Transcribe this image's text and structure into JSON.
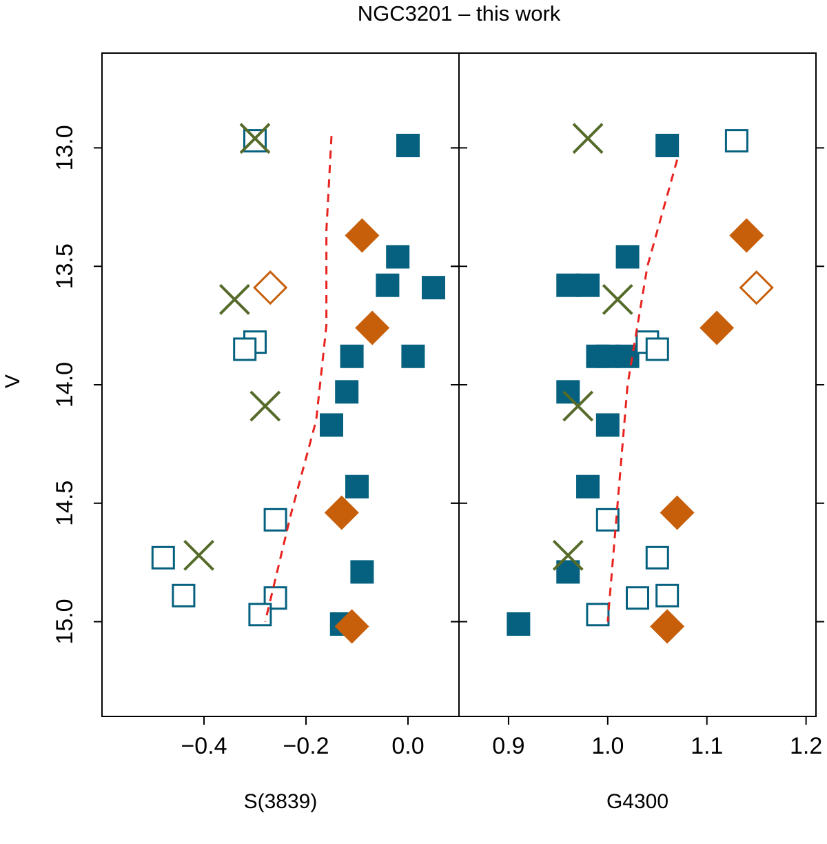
{
  "title": "NGC3201 – this work",
  "ylabel": "V",
  "colors": {
    "blue": "#05617f",
    "orange": "#c75f0a",
    "green": "#566b2a",
    "trend": "#e8231f"
  },
  "chart_data": [
    {
      "type": "scatter",
      "panel": "left",
      "xlabel": "S(3839)",
      "ylabel": "V",
      "xlim": [
        -0.6,
        0.1
      ],
      "ylim": [
        15.4,
        12.6
      ],
      "x_ticks": [
        -0.4,
        -0.2,
        0.0
      ],
      "x_tick_labels": [
        "−0.4",
        "−0.2",
        "0.0"
      ],
      "y_ticks": [
        13.0,
        13.5,
        14.0,
        14.5,
        15.0
      ],
      "y_tick_labels": [
        "13.0",
        "13.5",
        "14.0",
        "14.5",
        "15.0"
      ],
      "series": [
        {
          "marker": "filled-square",
          "color": "blue",
          "points": [
            [
              0.0,
              12.99
            ],
            [
              -0.02,
              13.46
            ],
            [
              -0.04,
              13.58
            ],
            [
              0.05,
              13.59
            ],
            [
              -0.11,
              13.88
            ],
            [
              0.01,
              13.88
            ],
            [
              -0.12,
              14.03
            ],
            [
              -0.15,
              14.17
            ],
            [
              -0.1,
              14.43
            ],
            [
              -0.09,
              14.79
            ],
            [
              -0.13,
              15.01
            ]
          ]
        },
        {
          "marker": "open-square",
          "color": "blue",
          "points": [
            [
              -0.3,
              12.97
            ],
            [
              -0.3,
              13.82
            ],
            [
              -0.32,
              13.85
            ],
            [
              -0.26,
              14.57
            ],
            [
              -0.48,
              14.73
            ],
            [
              -0.44,
              14.89
            ],
            [
              -0.26,
              14.9
            ],
            [
              -0.29,
              14.97
            ]
          ]
        },
        {
          "marker": "filled-diamond",
          "color": "orange",
          "points": [
            [
              -0.09,
              13.37
            ],
            [
              -0.07,
              13.76
            ],
            [
              -0.13,
              14.54
            ],
            [
              -0.11,
              15.02
            ]
          ]
        },
        {
          "marker": "open-diamond",
          "color": "orange",
          "points": [
            [
              -0.27,
              13.59
            ]
          ]
        },
        {
          "marker": "cross",
          "color": "green",
          "points": [
            [
              -0.3,
              12.96
            ],
            [
              -0.34,
              13.64
            ],
            [
              -0.28,
              14.09
            ],
            [
              -0.41,
              14.72
            ]
          ]
        },
        {
          "marker": "dashed-line",
          "color": "trend",
          "points": [
            [
              -0.15,
              12.95
            ],
            [
              -0.16,
              13.35
            ],
            [
              -0.16,
              13.75
            ],
            [
              -0.18,
              14.15
            ],
            [
              -0.23,
              14.55
            ],
            [
              -0.28,
              15.0
            ]
          ]
        }
      ]
    },
    {
      "type": "scatter",
      "panel": "right",
      "xlabel": "G4300",
      "xlim": [
        0.85,
        1.21
      ],
      "ylim": [
        15.4,
        12.6
      ],
      "x_ticks": [
        0.9,
        1.0,
        1.1,
        1.2
      ],
      "x_tick_labels": [
        "0.9",
        "1.0",
        "1.1",
        "1.2"
      ],
      "series": [
        {
          "marker": "filled-square",
          "color": "blue",
          "points": [
            [
              1.06,
              12.99
            ],
            [
              1.02,
              13.46
            ],
            [
              0.96,
              13.58
            ],
            [
              0.98,
              13.58
            ],
            [
              0.99,
              13.88
            ],
            [
              1.0,
              13.88
            ],
            [
              1.02,
              13.88
            ],
            [
              0.96,
              14.03
            ],
            [
              1.0,
              14.17
            ],
            [
              0.98,
              14.43
            ],
            [
              0.96,
              14.79
            ],
            [
              0.91,
              15.01
            ]
          ]
        },
        {
          "marker": "open-square",
          "color": "blue",
          "points": [
            [
              1.13,
              12.97
            ],
            [
              1.04,
              13.82
            ],
            [
              1.05,
              13.85
            ],
            [
              1.0,
              14.57
            ],
            [
              1.05,
              14.73
            ],
            [
              1.06,
              14.89
            ],
            [
              1.03,
              14.9
            ],
            [
              0.99,
              14.97
            ]
          ]
        },
        {
          "marker": "filled-diamond",
          "color": "orange",
          "points": [
            [
              1.14,
              13.37
            ],
            [
              1.11,
              13.76
            ],
            [
              1.07,
              14.54
            ],
            [
              1.06,
              15.02
            ]
          ]
        },
        {
          "marker": "open-diamond",
          "color": "orange",
          "points": [
            [
              1.15,
              13.59
            ]
          ]
        },
        {
          "marker": "cross",
          "color": "green",
          "points": [
            [
              0.98,
              12.96
            ],
            [
              1.01,
              13.64
            ],
            [
              0.97,
              14.09
            ],
            [
              0.96,
              14.72
            ]
          ]
        },
        {
          "marker": "dashed-line",
          "color": "trend",
          "points": [
            [
              1.07,
              13.05
            ],
            [
              1.04,
              13.5
            ],
            [
              1.02,
              14.0
            ],
            [
              1.01,
              14.5
            ],
            [
              1.0,
              15.0
            ]
          ]
        }
      ]
    }
  ]
}
